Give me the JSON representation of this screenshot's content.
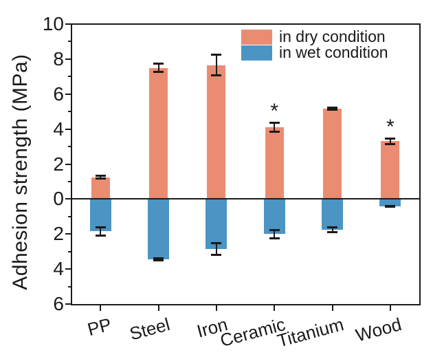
{
  "figure": {
    "background": "#ffffff",
    "axis_color": "#1a1a1a"
  },
  "chart_data": {
    "type": "bar",
    "title": "",
    "xlabel": "",
    "ylabel": "Adhesion strength (MPa)",
    "categories": [
      "PP",
      "Steel",
      "Iron",
      "Ceramic",
      "Titanium",
      "Wood"
    ],
    "series": [
      {
        "name": "in dry condition",
        "color": "#EA8C72",
        "values": [
          1.25,
          7.5,
          7.65,
          4.1,
          5.15,
          3.3
        ],
        "errors": [
          0.15,
          0.3,
          0.65,
          0.3,
          0.12,
          0.2
        ],
        "significance": [
          "",
          "",
          "",
          "*",
          "",
          "*"
        ]
      },
      {
        "name": "in wet condition",
        "color": "#4B94C3",
        "values": [
          -1.85,
          -3.45,
          -2.85,
          -2.0,
          -1.75,
          -0.4
        ],
        "errors": [
          0.3,
          0.12,
          0.4,
          0.3,
          0.2,
          0.08
        ],
        "significance": [
          "",
          "",
          "",
          "",
          "",
          ""
        ]
      }
    ],
    "y_axis": {
      "min": -6,
      "max": 10,
      "major_step": 2,
      "minor_step": 1,
      "tick_labels": [
        "10",
        "8",
        "6",
        "4",
        "2",
        "0",
        "2",
        "4",
        "6"
      ],
      "labels_show_absolute_values": true
    },
    "legend": {
      "position": "top-right"
    },
    "grid": false,
    "zero_line": true,
    "error_bars": true
  }
}
